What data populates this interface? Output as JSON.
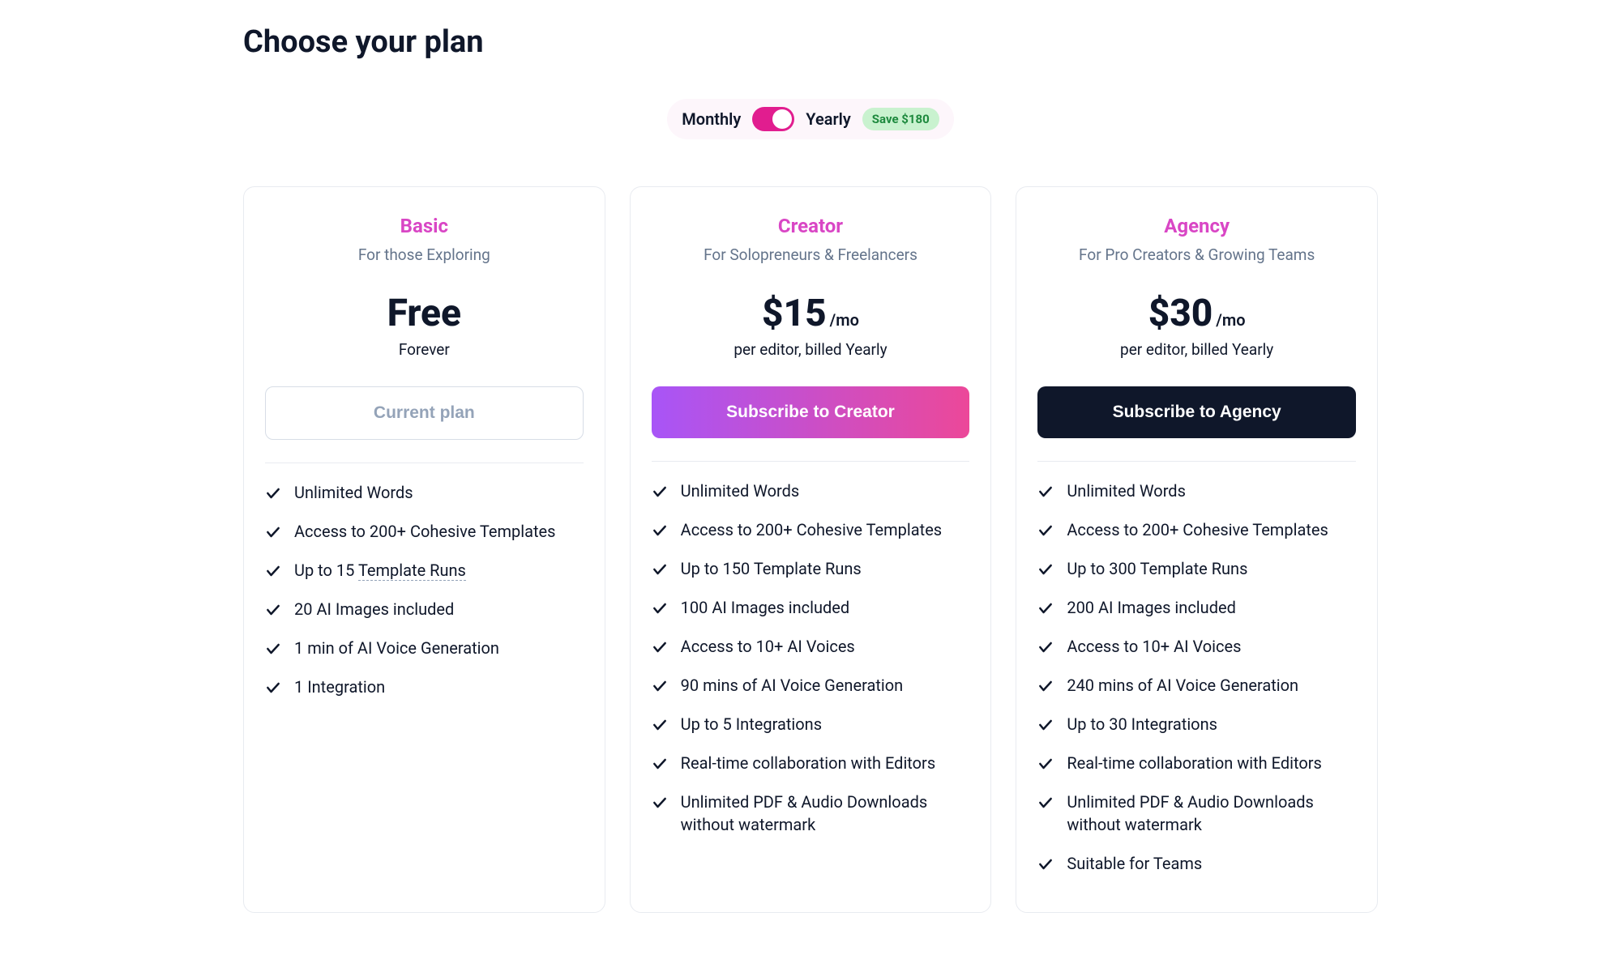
{
  "page": {
    "title": "Choose your plan"
  },
  "billingToggle": {
    "left": "Monthly",
    "right": "Yearly",
    "save_badge": "Save $180",
    "active": "Yearly",
    "switch_bg": "#e11d8f",
    "pill_bg": "#fdf6fb",
    "badge_bg": "#c9f2cf",
    "badge_text_color": "#1e8a3e"
  },
  "colors": {
    "brand_magenta": "#d946c5",
    "gradient_from": "#a855f7",
    "gradient_to": "#ec4899",
    "dark": "#0f172a",
    "muted": "#64748b",
    "border": "#e8ebf0",
    "check_stroke": "#0f172a"
  },
  "plans": [
    {
      "id": "basic",
      "name": "Basic",
      "name_color": "#d946c5",
      "subtitle": "For those Exploring",
      "price": "Free",
      "price_suffix": "",
      "price_note": "Forever",
      "cta_label": "Current plan",
      "cta_style": "current",
      "features": [
        {
          "text": "Unlimited Words"
        },
        {
          "text": "Access to 200+ Cohesive Templates"
        },
        {
          "text_prefix": "Up to 15 ",
          "text_underlined": "Template Runs"
        },
        {
          "text": "20 AI Images included"
        },
        {
          "text": "1 min of AI Voice Generation"
        },
        {
          "text": "1 Integration"
        }
      ]
    },
    {
      "id": "creator",
      "name": "Creator",
      "name_color": "#d946c5",
      "subtitle": "For Solopreneurs & Freelancers",
      "price": "$15",
      "price_suffix": "/mo",
      "price_note": "per editor, billed Yearly",
      "cta_label": "Subscribe to Creator",
      "cta_style": "gradient",
      "features": [
        {
          "text": "Unlimited Words"
        },
        {
          "text": "Access to 200+ Cohesive Templates"
        },
        {
          "text": "Up to 150 Template Runs"
        },
        {
          "text": "100 AI Images included"
        },
        {
          "text": "Access to 10+ AI Voices"
        },
        {
          "text": "90 mins of AI Voice Generation"
        },
        {
          "text": "Up to 5 Integrations"
        },
        {
          "text": "Real-time collaboration with Editors"
        },
        {
          "text": "Unlimited PDF & Audio Downloads without watermark"
        }
      ]
    },
    {
      "id": "agency",
      "name": "Agency",
      "name_color": "#d946c5",
      "subtitle": "For Pro Creators & Growing Teams",
      "price": "$30",
      "price_suffix": "/mo",
      "price_note": "per editor, billed Yearly",
      "cta_label": "Subscribe to Agency",
      "cta_style": "dark",
      "features": [
        {
          "text": "Unlimited Words"
        },
        {
          "text": "Access to 200+ Cohesive Templates"
        },
        {
          "text": "Up to 300 Template Runs"
        },
        {
          "text": "200 AI Images included"
        },
        {
          "text": "Access to 10+ AI Voices"
        },
        {
          "text": "240 mins of AI Voice Generation"
        },
        {
          "text": "Up to 30 Integrations"
        },
        {
          "text": "Real-time collaboration with Editors"
        },
        {
          "text": "Unlimited PDF & Audio Downloads without watermark"
        },
        {
          "text": "Suitable for Teams"
        }
      ]
    }
  ]
}
